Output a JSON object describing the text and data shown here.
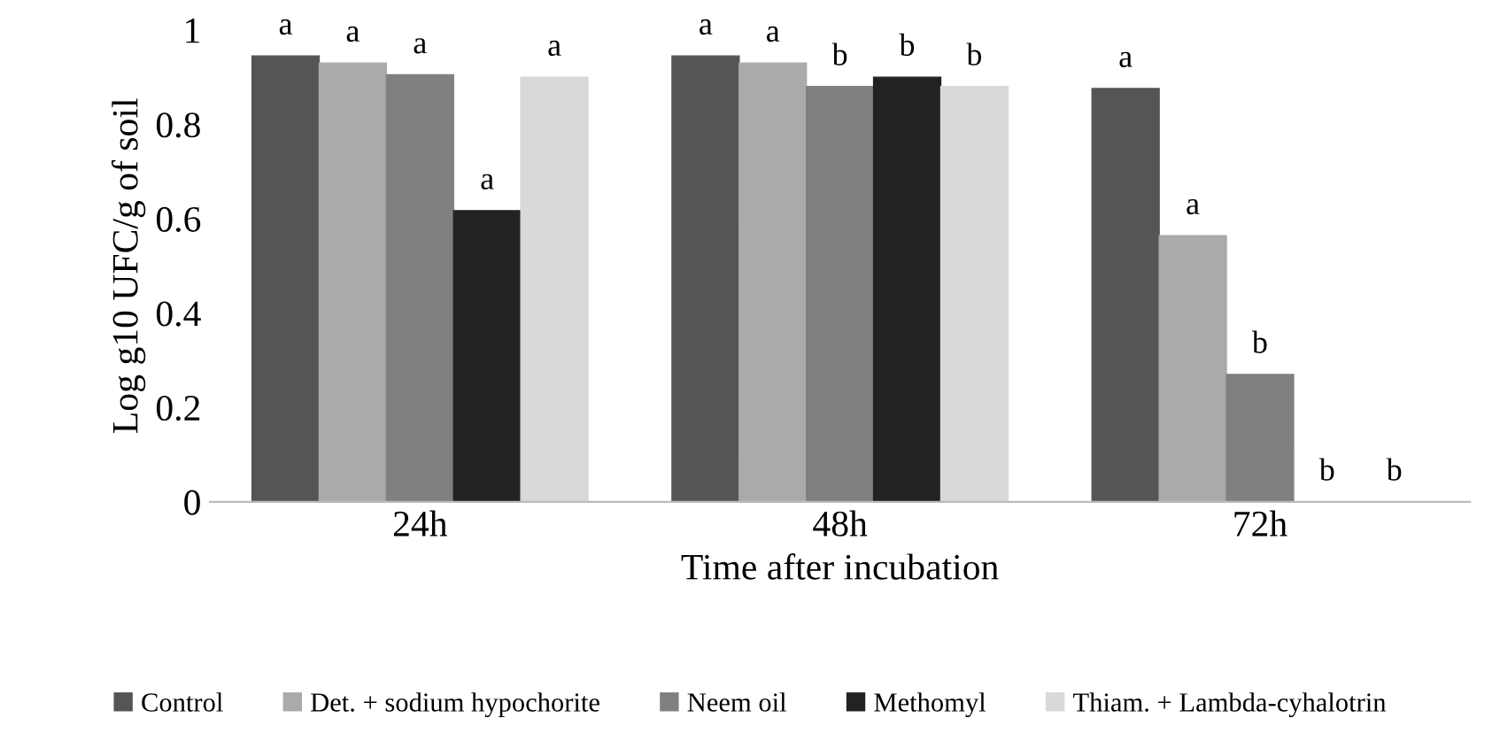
{
  "chart_data": {
    "type": "bar",
    "xlabel": "Time after incubation",
    "ylabel": "Log g10 UFC/g of soil",
    "categories": [
      "24h",
      "48h",
      "72h"
    ],
    "series": [
      {
        "name": "Control",
        "color": "#555555",
        "values": [
          0.945,
          0.945,
          0.876
        ],
        "value_labels": [
          "a",
          "a",
          "a"
        ]
      },
      {
        "name": "Det. + sodium hypochorite",
        "color": "#aaaaaa",
        "values": [
          0.93,
          0.93,
          0.564
        ],
        "value_labels": [
          "a",
          "a",
          "a"
        ]
      },
      {
        "name": "Neem oil",
        "color": "#808080",
        "values": [
          0.905,
          0.88,
          0.27
        ],
        "value_labels": [
          "a",
          "b",
          "b"
        ]
      },
      {
        "name": "Methomyl",
        "color": "#222222",
        "values": [
          0.617,
          0.9,
          0
        ],
        "value_labels": [
          "a",
          "b",
          "b"
        ]
      },
      {
        "name": "Thiam. + Lambda-cyhalotrin",
        "color": "#d9d9d9",
        "values": [
          0.9,
          0.88,
          0
        ],
        "value_labels": [
          "a",
          "b",
          "b"
        ]
      }
    ],
    "ylim": [
      0,
      1
    ],
    "yticks": [
      0,
      0.2,
      0.4,
      0.6,
      0.8,
      1
    ],
    "grid": false,
    "legend": "bottom"
  }
}
